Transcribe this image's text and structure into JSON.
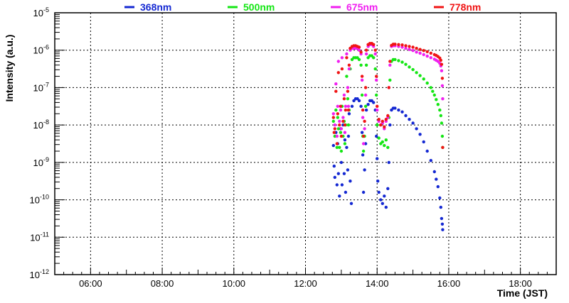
{
  "chart_data": {
    "type": "scatter",
    "title": "",
    "xlabel": "Time (JST)",
    "ylabel": "Intensity (a.u.)",
    "x_unit": "hours JST",
    "xlim": [
      5.0,
      19.0
    ],
    "ylim_log10": [
      -12,
      -5
    ],
    "x_ticks": [
      {
        "value": 6,
        "label": "06:00"
      },
      {
        "value": 8,
        "label": "08:00"
      },
      {
        "value": 10,
        "label": "10:00"
      },
      {
        "value": 12,
        "label": "12:00"
      },
      {
        "value": 14,
        "label": "14:00"
      },
      {
        "value": 16,
        "label": "16:00"
      },
      {
        "value": 18,
        "label": "18:00"
      }
    ],
    "y_ticks": [
      {
        "exp": -12,
        "base": "10",
        "power": "-12"
      },
      {
        "exp": -11,
        "base": "10",
        "power": "-11"
      },
      {
        "exp": -10,
        "base": "10",
        "power": "-10"
      },
      {
        "exp": -9,
        "base": "10",
        "power": "-9"
      },
      {
        "exp": -8,
        "base": "10",
        "power": "-8"
      },
      {
        "exp": -7,
        "base": "10",
        "power": "-7"
      },
      {
        "exp": -6,
        "base": "10",
        "power": "-6"
      },
      {
        "exp": -5,
        "base": "10",
        "power": "-5"
      }
    ],
    "grid": true,
    "legend_position": "top",
    "series": [
      {
        "name": "368nm",
        "color": "#1428d2",
        "points": [
          [
            12.78,
            -8.55
          ],
          [
            12.8,
            -9.1
          ],
          [
            12.82,
            -9.4
          ],
          [
            12.85,
            -8.2
          ],
          [
            12.88,
            -9.6
          ],
          [
            12.9,
            -8.5
          ],
          [
            12.92,
            -9.3
          ],
          [
            12.95,
            -9.9
          ],
          [
            12.98,
            -8.1
          ],
          [
            13.0,
            -9.0
          ],
          [
            13.02,
            -9.6
          ],
          [
            13.05,
            -8.0
          ],
          [
            13.08,
            -9.3
          ],
          [
            13.1,
            -8.4
          ],
          [
            13.12,
            -9.8
          ],
          [
            13.15,
            -8.6
          ],
          [
            13.18,
            -9.2
          ],
          [
            13.2,
            -8.3
          ],
          [
            13.22,
            -7.7
          ],
          [
            13.25,
            -9.5
          ],
          [
            13.28,
            -10.1
          ],
          [
            13.3,
            -7.5
          ],
          [
            13.35,
            -7.35
          ],
          [
            13.4,
            -7.3
          ],
          [
            13.45,
            -7.3
          ],
          [
            13.5,
            -7.35
          ],
          [
            13.55,
            -7.5
          ],
          [
            13.58,
            -8.2
          ],
          [
            13.6,
            -8.8
          ],
          [
            13.62,
            -9.8
          ],
          [
            13.65,
            -9.2
          ],
          [
            13.68,
            -8.5
          ],
          [
            13.7,
            -7.6
          ],
          [
            13.75,
            -7.45
          ],
          [
            13.8,
            -7.35
          ],
          [
            13.85,
            -7.35
          ],
          [
            13.9,
            -7.4
          ],
          [
            13.95,
            -7.6
          ],
          [
            13.98,
            -8.3
          ],
          [
            14.0,
            -8.9
          ],
          [
            14.02,
            -9.5
          ],
          [
            14.05,
            -9.8
          ],
          [
            14.1,
            -10.0
          ],
          [
            14.15,
            -10.1
          ],
          [
            14.2,
            -9.9
          ],
          [
            14.25,
            -10.2
          ],
          [
            14.3,
            -9.7
          ],
          [
            14.33,
            -9.0
          ],
          [
            14.36,
            -8.0
          ],
          [
            14.4,
            -7.6
          ],
          [
            14.45,
            -7.55
          ],
          [
            14.5,
            -7.55
          ],
          [
            14.6,
            -7.6
          ],
          [
            14.7,
            -7.65
          ],
          [
            14.8,
            -7.75
          ],
          [
            14.9,
            -7.85
          ],
          [
            15.0,
            -7.95
          ],
          [
            15.1,
            -8.1
          ],
          [
            15.2,
            -8.25
          ],
          [
            15.3,
            -8.45
          ],
          [
            15.4,
            -8.7
          ],
          [
            15.5,
            -8.95
          ],
          [
            15.6,
            -9.25
          ],
          [
            15.65,
            -9.45
          ],
          [
            15.7,
            -9.65
          ],
          [
            15.75,
            -9.95
          ],
          [
            15.78,
            -10.2
          ],
          [
            15.8,
            -10.5
          ],
          [
            15.82,
            -10.65
          ],
          [
            15.83,
            -10.8
          ]
        ]
      },
      {
        "name": "500nm",
        "color": "#14e614",
        "points": [
          [
            12.78,
            -7.9
          ],
          [
            12.82,
            -8.3
          ],
          [
            12.85,
            -7.6
          ],
          [
            12.88,
            -8.6
          ],
          [
            12.9,
            -7.8
          ],
          [
            12.92,
            -8.1
          ],
          [
            12.95,
            -8.6
          ],
          [
            12.98,
            -8.2
          ],
          [
            13.0,
            -8.7
          ],
          [
            13.02,
            -7.5
          ],
          [
            13.05,
            -8.3
          ],
          [
            13.08,
            -7.9
          ],
          [
            13.1,
            -8.5
          ],
          [
            13.12,
            -8.0
          ],
          [
            13.15,
            -6.7
          ],
          [
            13.18,
            -7.3
          ],
          [
            13.2,
            -8.0
          ],
          [
            13.22,
            -7.6
          ],
          [
            13.25,
            -6.5
          ],
          [
            13.3,
            -6.25
          ],
          [
            13.35,
            -6.2
          ],
          [
            13.4,
            -6.2
          ],
          [
            13.45,
            -6.2
          ],
          [
            13.5,
            -6.25
          ],
          [
            13.55,
            -6.4
          ],
          [
            13.58,
            -7.2
          ],
          [
            13.6,
            -8.3
          ],
          [
            13.62,
            -8.7
          ],
          [
            13.65,
            -8.3
          ],
          [
            13.68,
            -7.5
          ],
          [
            13.7,
            -6.4
          ],
          [
            13.75,
            -6.2
          ],
          [
            13.8,
            -6.15
          ],
          [
            13.85,
            -6.15
          ],
          [
            13.9,
            -6.2
          ],
          [
            13.95,
            -6.5
          ],
          [
            13.98,
            -7.2
          ],
          [
            14.0,
            -8.0
          ],
          [
            14.05,
            -8.35
          ],
          [
            14.1,
            -8.5
          ],
          [
            14.15,
            -8.45
          ],
          [
            14.2,
            -8.55
          ],
          [
            14.25,
            -8.4
          ],
          [
            14.3,
            -8.6
          ],
          [
            14.33,
            -7.8
          ],
          [
            14.36,
            -6.8
          ],
          [
            14.4,
            -6.3
          ],
          [
            14.45,
            -6.25
          ],
          [
            14.5,
            -6.25
          ],
          [
            14.6,
            -6.28
          ],
          [
            14.7,
            -6.32
          ],
          [
            14.8,
            -6.38
          ],
          [
            14.9,
            -6.45
          ],
          [
            15.0,
            -6.52
          ],
          [
            15.1,
            -6.6
          ],
          [
            15.2,
            -6.68
          ],
          [
            15.3,
            -6.77
          ],
          [
            15.4,
            -6.88
          ],
          [
            15.5,
            -7.0
          ],
          [
            15.55,
            -7.1
          ],
          [
            15.6,
            -7.2
          ],
          [
            15.65,
            -7.32
          ],
          [
            15.7,
            -7.45
          ],
          [
            15.75,
            -7.6
          ],
          [
            15.78,
            -7.75
          ],
          [
            15.8,
            -7.95
          ],
          [
            15.82,
            -8.3
          ],
          [
            15.83,
            -8.6
          ]
        ]
      },
      {
        "name": "675nm",
        "color": "#f01ef0",
        "points": [
          [
            12.78,
            -7.7
          ],
          [
            12.82,
            -8.0
          ],
          [
            12.85,
            -6.9
          ],
          [
            12.88,
            -8.3
          ],
          [
            12.9,
            -7.5
          ],
          [
            12.92,
            -6.3
          ],
          [
            12.95,
            -7.9
          ],
          [
            12.98,
            -7.6
          ],
          [
            13.0,
            -8.1
          ],
          [
            13.02,
            -6.2
          ],
          [
            13.05,
            -7.8
          ],
          [
            13.08,
            -7.2
          ],
          [
            13.1,
            -8.2
          ],
          [
            13.12,
            -7.5
          ],
          [
            13.15,
            -6.1
          ],
          [
            13.18,
            -7.0
          ],
          [
            13.2,
            -7.5
          ],
          [
            13.22,
            -6.5
          ],
          [
            13.25,
            -6.0
          ],
          [
            13.3,
            -5.95
          ],
          [
            13.35,
            -5.95
          ],
          [
            13.4,
            -5.95
          ],
          [
            13.45,
            -5.95
          ],
          [
            13.5,
            -6.0
          ],
          [
            13.55,
            -6.1
          ],
          [
            13.58,
            -6.8
          ],
          [
            13.6,
            -7.8
          ],
          [
            13.62,
            -8.5
          ],
          [
            13.65,
            -8.1
          ],
          [
            13.68,
            -7.2
          ],
          [
            13.7,
            -6.1
          ],
          [
            13.75,
            -5.9
          ],
          [
            13.8,
            -5.85
          ],
          [
            13.85,
            -5.85
          ],
          [
            13.9,
            -5.9
          ],
          [
            13.95,
            -6.1
          ],
          [
            13.98,
            -6.8
          ],
          [
            14.0,
            -7.6
          ],
          [
            14.05,
            -7.9
          ],
          [
            14.1,
            -8.0
          ],
          [
            14.15,
            -7.95
          ],
          [
            14.2,
            -8.1
          ],
          [
            14.25,
            -7.9
          ],
          [
            14.3,
            -7.8
          ],
          [
            14.33,
            -7.0
          ],
          [
            14.36,
            -6.4
          ],
          [
            14.4,
            -5.9
          ],
          [
            14.45,
            -5.88
          ],
          [
            14.5,
            -5.88
          ],
          [
            14.6,
            -5.9
          ],
          [
            14.7,
            -5.92
          ],
          [
            14.8,
            -5.95
          ],
          [
            14.9,
            -5.98
          ],
          [
            15.0,
            -6.01
          ],
          [
            15.1,
            -6.05
          ],
          [
            15.2,
            -6.08
          ],
          [
            15.3,
            -6.12
          ],
          [
            15.4,
            -6.16
          ],
          [
            15.5,
            -6.2
          ],
          [
            15.6,
            -6.24
          ],
          [
            15.65,
            -6.27
          ],
          [
            15.7,
            -6.3
          ],
          [
            15.75,
            -6.35
          ],
          [
            15.78,
            -6.42
          ],
          [
            15.8,
            -6.55
          ],
          [
            15.82,
            -6.95
          ],
          [
            15.83,
            -7.3
          ]
        ]
      },
      {
        "name": "778nm",
        "color": "#f01414",
        "points": [
          [
            12.78,
            -7.8
          ],
          [
            12.8,
            -8.2
          ],
          [
            12.82,
            -8.1
          ],
          [
            12.85,
            -7.1
          ],
          [
            12.88,
            -8.5
          ],
          [
            12.9,
            -7.7
          ],
          [
            12.92,
            -6.6
          ],
          [
            12.95,
            -8.0
          ],
          [
            12.98,
            -7.5
          ],
          [
            13.0,
            -8.3
          ],
          [
            13.02,
            -6.5
          ],
          [
            13.05,
            -7.9
          ],
          [
            13.08,
            -7.3
          ],
          [
            13.1,
            -8.0
          ],
          [
            13.12,
            -7.6
          ],
          [
            13.15,
            -6.2
          ],
          [
            13.18,
            -7.1
          ],
          [
            13.2,
            -7.6
          ],
          [
            13.22,
            -6.4
          ],
          [
            13.25,
            -5.95
          ],
          [
            13.3,
            -5.9
          ],
          [
            13.35,
            -5.88
          ],
          [
            13.4,
            -5.88
          ],
          [
            13.45,
            -5.9
          ],
          [
            13.5,
            -5.92
          ],
          [
            13.55,
            -6.05
          ],
          [
            13.58,
            -6.7
          ],
          [
            13.6,
            -7.6
          ],
          [
            13.62,
            -8.3
          ],
          [
            13.65,
            -7.9
          ],
          [
            13.68,
            -7.0
          ],
          [
            13.7,
            -6.0
          ],
          [
            13.75,
            -5.85
          ],
          [
            13.8,
            -5.82
          ],
          [
            13.85,
            -5.82
          ],
          [
            13.9,
            -5.85
          ],
          [
            13.95,
            -6.0
          ],
          [
            13.98,
            -6.7
          ],
          [
            14.0,
            -7.5
          ],
          [
            14.05,
            -7.85
          ],
          [
            14.1,
            -8.0
          ],
          [
            14.15,
            -7.9
          ],
          [
            14.2,
            -8.05
          ],
          [
            14.25,
            -7.85
          ],
          [
            14.3,
            -7.75
          ],
          [
            14.33,
            -7.0
          ],
          [
            14.36,
            -6.3
          ],
          [
            14.4,
            -5.87
          ],
          [
            14.45,
            -5.84
          ],
          [
            14.5,
            -5.84
          ],
          [
            14.6,
            -5.85
          ],
          [
            14.7,
            -5.86
          ],
          [
            14.8,
            -5.88
          ],
          [
            14.9,
            -5.9
          ],
          [
            15.0,
            -5.92
          ],
          [
            15.1,
            -5.95
          ],
          [
            15.2,
            -5.98
          ],
          [
            15.3,
            -6.01
          ],
          [
            15.4,
            -6.04
          ],
          [
            15.5,
            -6.08
          ],
          [
            15.6,
            -6.12
          ],
          [
            15.65,
            -6.14
          ],
          [
            15.7,
            -6.17
          ],
          [
            15.75,
            -6.21
          ],
          [
            15.78,
            -6.27
          ],
          [
            15.8,
            -6.38
          ],
          [
            15.82,
            -6.75
          ],
          [
            15.83,
            -8.6
          ]
        ]
      }
    ]
  }
}
